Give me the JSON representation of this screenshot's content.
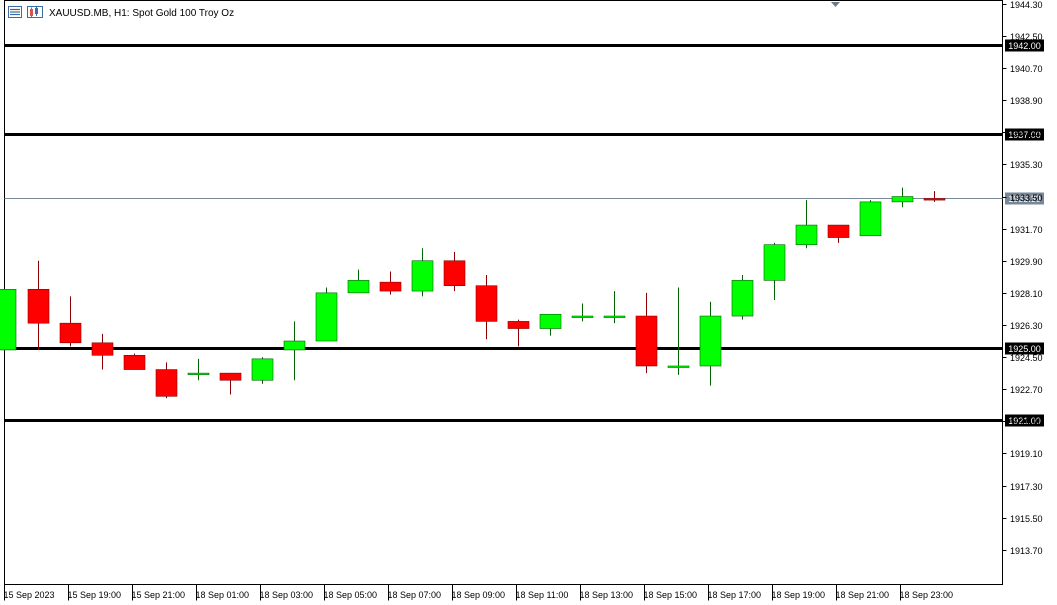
{
  "window": {
    "symbol_title": "XAUUSD.MB, H1:  Spot Gold 100 Troy Oz",
    "icons": [
      "chart-menu-icon",
      "chart-type-icon"
    ]
  },
  "colors": {
    "bull": "#00ff00",
    "bear": "#ff0000",
    "bull_wick": "#006400",
    "bear_wick": "#8b0000",
    "level_line": "#000000",
    "bid_line": "#778899",
    "background": "#ffffff",
    "axis": "#000000"
  },
  "chart_data": {
    "type": "candlestick",
    "title": "XAUUSD.MB, H1:  Spot Gold 100 Troy Oz",
    "ylim": [
      1911.75,
      1944.49
    ],
    "y_ticks": [
      "1944.30",
      "1942.50",
      "1940.70",
      "1938.90",
      "1937.10",
      "1935.30",
      "1933.50",
      "1931.70",
      "1929.90",
      "1928.10",
      "1926.30",
      "1924.50",
      "1922.70",
      "1920.90",
      "1919.10",
      "1917.30",
      "1915.50",
      "1913.70"
    ],
    "x_labels": [
      "15 Sep 2023",
      "15 Sep 19:00",
      "15 Sep 21:00",
      "18 Sep 01:00",
      "18 Sep 03:00",
      "18 Sep 05:00",
      "18 Sep 07:00",
      "18 Sep 09:00",
      "18 Sep 11:00",
      "18 Sep 13:00",
      "18 Sep 15:00",
      "18 Sep 17:00",
      "18 Sep 19:00",
      "18 Sep 21:00",
      "18 Sep 23:00"
    ],
    "candles": [
      {
        "o": 924.9,
        "h": 928.3,
        "l": 924.9,
        "c": 928.3
      },
      {
        "o": 928.3,
        "h": 929.9,
        "l": 924.9,
        "c": 926.4
      },
      {
        "o": 926.4,
        "h": 927.9,
        "l": 925.1,
        "c": 925.3
      },
      {
        "o": 925.3,
        "h": 925.8,
        "l": 923.8,
        "c": 924.6
      },
      {
        "o": 924.6,
        "h": 924.7,
        "l": 923.8,
        "c": 923.8
      },
      {
        "o": 923.8,
        "h": 924.2,
        "l": 922.2,
        "c": 922.3
      },
      {
        "o": 923.6,
        "h": 924.4,
        "l": 923.2,
        "c": 923.6
      },
      {
        "o": 923.6,
        "h": 923.6,
        "l": 922.4,
        "c": 923.2
      },
      {
        "o": 923.2,
        "h": 924.5,
        "l": 923.0,
        "c": 924.4
      },
      {
        "o": 924.9,
        "h": 926.5,
        "l": 923.2,
        "c": 925.4
      },
      {
        "o": 925.4,
        "h": 928.4,
        "l": 925.4,
        "c": 928.1
      },
      {
        "o": 928.1,
        "h": 929.4,
        "l": 928.1,
        "c": 928.8
      },
      {
        "o": 928.7,
        "h": 929.3,
        "l": 928.0,
        "c": 928.2
      },
      {
        "o": 928.2,
        "h": 930.6,
        "l": 927.9,
        "c": 929.9
      },
      {
        "o": 929.9,
        "h": 930.4,
        "l": 928.2,
        "c": 928.5
      },
      {
        "o": 928.5,
        "h": 929.1,
        "l": 925.5,
        "c": 926.5
      },
      {
        "o": 926.5,
        "h": 926.6,
        "l": 925.1,
        "c": 926.1
      },
      {
        "o": 926.1,
        "h": 926.9,
        "l": 925.7,
        "c": 926.9
      },
      {
        "o": 926.8,
        "h": 927.5,
        "l": 926.5,
        "c": 926.8
      },
      {
        "o": 926.8,
        "h": 928.2,
        "l": 926.4,
        "c": 926.8
      },
      {
        "o": 926.8,
        "h": 928.1,
        "l": 923.6,
        "c": 924.0
      },
      {
        "o": 924.0,
        "h": 928.4,
        "l": 923.5,
        "c": 924.0
      },
      {
        "o": 924.0,
        "h": 927.6,
        "l": 922.9,
        "c": 926.8
      },
      {
        "o": 926.8,
        "h": 929.1,
        "l": 926.6,
        "c": 928.8
      },
      {
        "o": 928.8,
        "h": 930.9,
        "l": 927.7,
        "c": 930.8
      },
      {
        "o": 930.8,
        "h": 933.3,
        "l": 930.6,
        "c": 931.9
      },
      {
        "o": 931.9,
        "h": 931.9,
        "l": 930.9,
        "c": 931.2
      },
      {
        "o": 931.3,
        "h": 933.3,
        "l": 931.3,
        "c": 933.2
      },
      {
        "o": 933.2,
        "h": 934.0,
        "l": 932.9,
        "c": 933.5
      },
      {
        "o": 933.39,
        "h": 933.8,
        "l": 933.2,
        "c": 933.3
      }
    ],
    "levels": [
      {
        "price": 1942.0,
        "label": "1942.00"
      },
      {
        "price": 1937.0,
        "label": "1937.00"
      },
      {
        "price": 1925.0,
        "label": "1925.00"
      },
      {
        "price": 1921.0,
        "label": "1921.00"
      }
    ],
    "bid": {
      "price": 1933.39,
      "label": "1933.39"
    },
    "grid": false
  }
}
